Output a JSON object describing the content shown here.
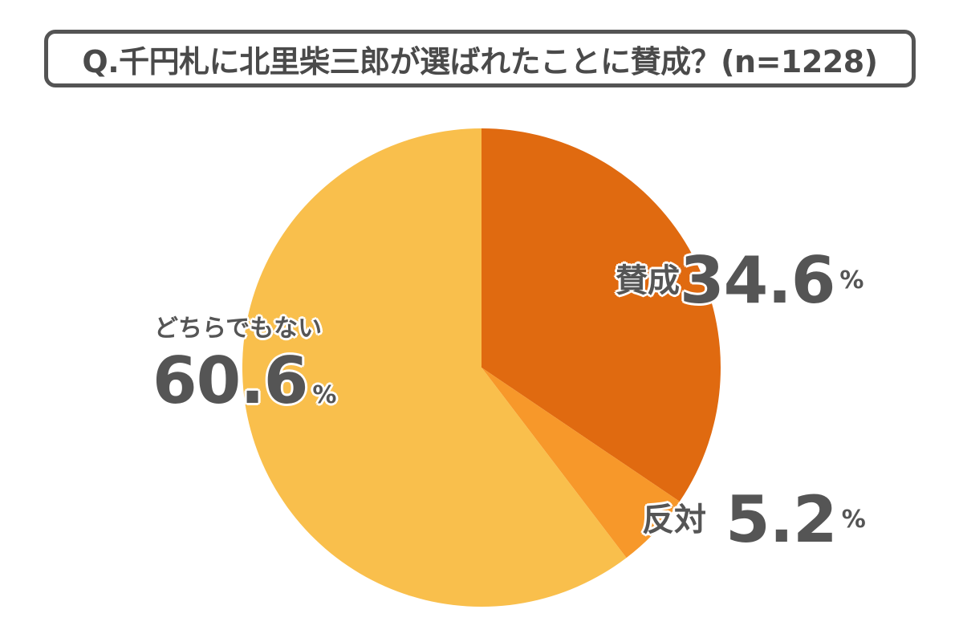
{
  "title": "Q.千円札に北里柴三郎が選ばれたことに賛成？(n=1228)",
  "chart_data": {
    "type": "pie",
    "title": "Q.千円札に北里柴三郎が選ばれたことに賛成？(n=1228)",
    "labels": [
      "賛成",
      "反対",
      "どちらでもない"
    ],
    "values": [
      34.6,
      5.2,
      60.6
    ],
    "value_text": [
      "34.6",
      "5.2",
      "60.6"
    ],
    "unit": "%",
    "colors": [
      "#e06a10",
      "#f7982a",
      "#f9bf4c"
    ],
    "start": "12 o'clock",
    "direction": "clockwise"
  }
}
